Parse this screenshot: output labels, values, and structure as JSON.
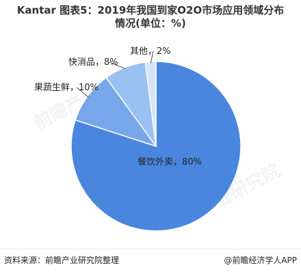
{
  "header": {
    "title_line1": "Kantar 图表5：2019年我国到家O2O市场应用领域分布",
    "title_line2": "情况(单位：%)"
  },
  "chart_data": {
    "type": "pie",
    "slices": [
      {
        "label": "餐饮外卖，80%",
        "value": 80,
        "color": "#4A86DE"
      },
      {
        "label": "果蔬生鲜，10%",
        "value": 10,
        "color": "#77A7EA"
      },
      {
        "label": "快消品，8%",
        "value": 8,
        "color": "#9BC0F2"
      },
      {
        "label": "其他，2%",
        "value": 2,
        "color": "#D5E4F8"
      }
    ],
    "title": "",
    "legend": "none"
  },
  "footer": {
    "source": "资料来源：前瞻产业研究院整理",
    "brand": "@前瞻经济学人APP"
  },
  "watermark": {
    "text": "前瞻产业研究院"
  }
}
